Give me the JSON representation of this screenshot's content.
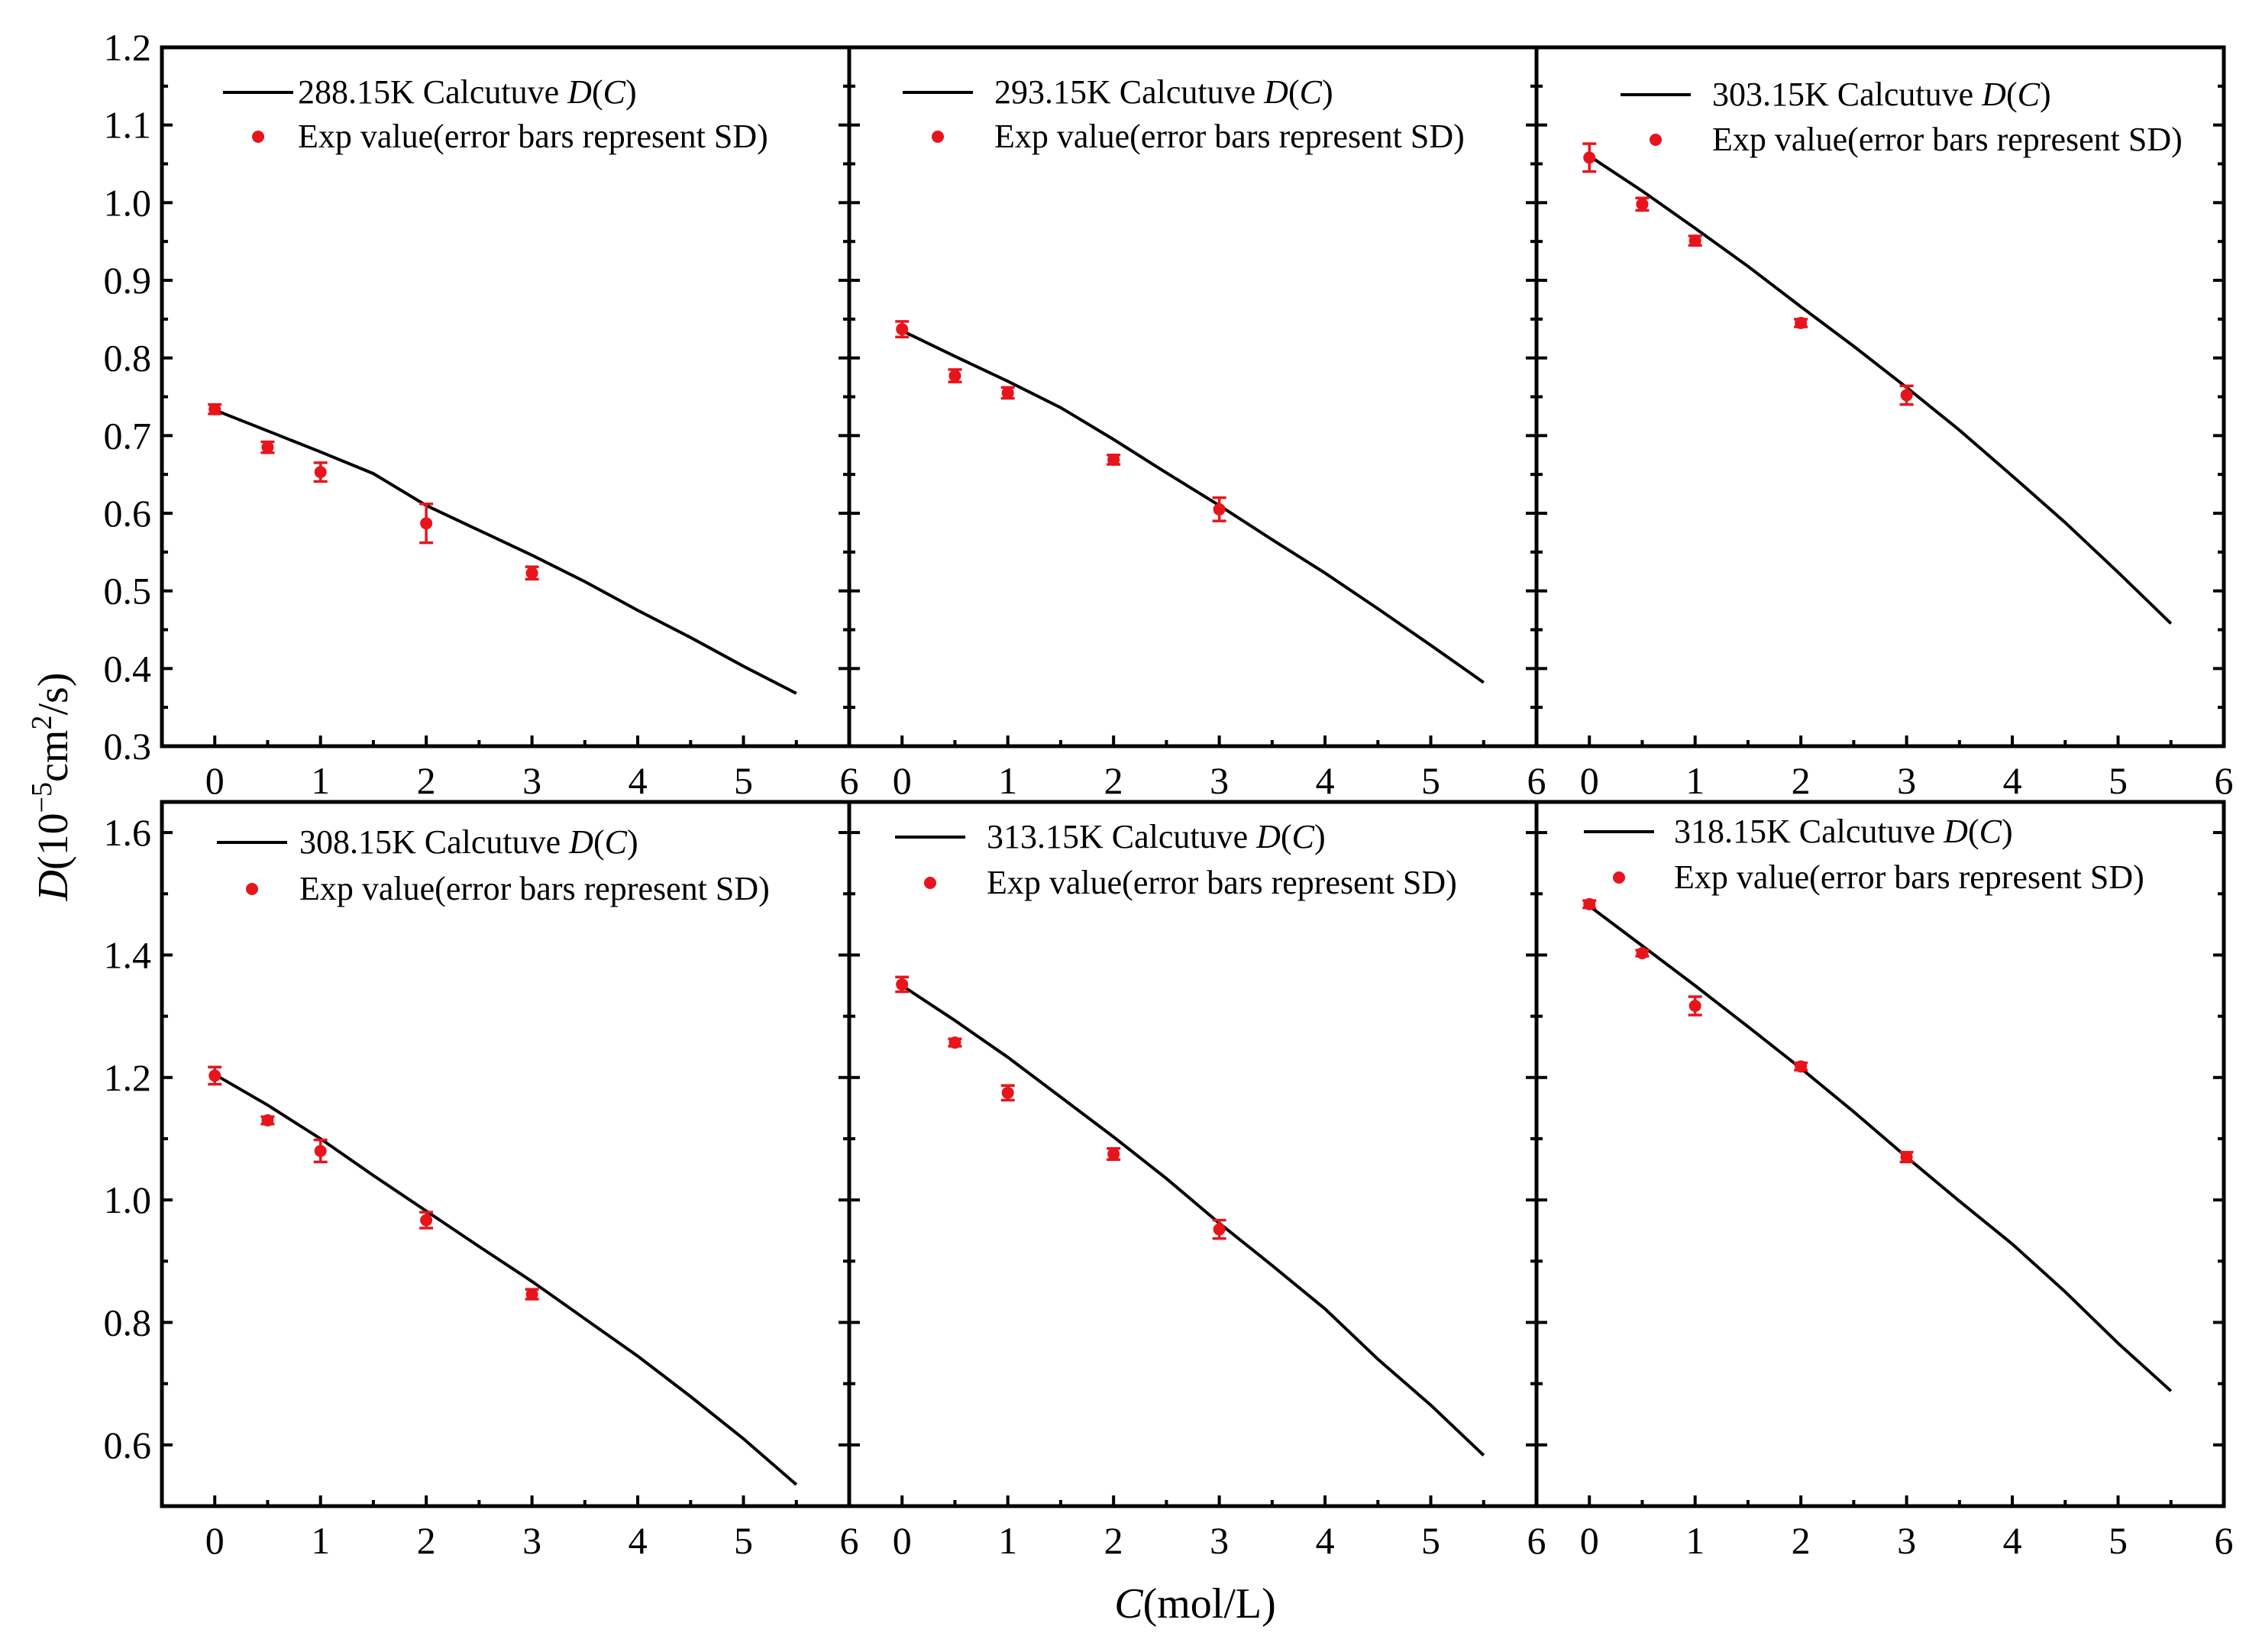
{
  "figure": {
    "y_axis_title": {
      "prefix": "D",
      "base": "(10",
      "exp1": "−5",
      "mid": "cm",
      "exp2": "2",
      "suffix": "/s)"
    },
    "x_axis_title": {
      "prefix": "C",
      "suffix": "(mol/L)"
    },
    "legend_curve_suffix": " Calcutuve ",
    "legend_curve_func": "D",
    "legend_curve_open": "(",
    "legend_curve_arg": "C",
    "legend_curve_close": ")",
    "legend_points_label": "Exp value(error bars represent SD)",
    "colors": {
      "curve": "#000000",
      "points": "#e8141c"
    }
  },
  "chart_data": [
    {
      "type": "line",
      "temperature": "288.15K",
      "xlim": [
        -0.5,
        6
      ],
      "ylim": [
        0.3,
        1.2
      ],
      "xticks": [
        "0",
        "1",
        "2",
        "3",
        "4",
        "5",
        "6"
      ],
      "yticks": [
        "0.3",
        "0.4",
        "0.5",
        "0.6",
        "0.7",
        "0.8",
        "0.9",
        "1.0",
        "1.1",
        "1.2"
      ],
      "curve": {
        "x": [
          0,
          0.5,
          1,
          1.5,
          2,
          2.5,
          3,
          3.5,
          4,
          4.5,
          5,
          5.5
        ],
        "y": [
          0.733,
          0.706,
          0.679,
          0.651,
          0.61,
          0.578,
          0.546,
          0.512,
          0.475,
          0.44,
          0.403,
          0.368
        ]
      },
      "points": {
        "x": [
          0,
          0.5,
          1,
          2,
          3
        ],
        "y": [
          0.734,
          0.685,
          0.653,
          0.587,
          0.523
        ],
        "err": [
          0.006,
          0.007,
          0.012,
          0.025,
          0.008
        ]
      }
    },
    {
      "type": "line",
      "temperature": "293.15K",
      "xlim": [
        -0.5,
        6
      ],
      "ylim": [
        0.3,
        1.2
      ],
      "xticks": [
        "0",
        "1",
        "2",
        "3",
        "4",
        "5",
        "6"
      ],
      "yticks": [
        "0.3",
        "0.4",
        "0.5",
        "0.6",
        "0.7",
        "0.8",
        "0.9",
        "1.0",
        "1.1",
        "1.2"
      ],
      "curve": {
        "x": [
          0,
          0.5,
          1,
          1.5,
          2,
          2.5,
          3,
          3.5,
          4,
          4.5,
          5,
          5.5
        ],
        "y": [
          0.835,
          0.802,
          0.77,
          0.736,
          0.695,
          0.652,
          0.61,
          0.566,
          0.523,
          0.477,
          0.43,
          0.382
        ]
      },
      "points": {
        "x": [
          0,
          0.5,
          1,
          2,
          3
        ],
        "y": [
          0.837,
          0.777,
          0.755,
          0.669,
          0.605
        ],
        "err": [
          0.01,
          0.008,
          0.007,
          0.006,
          0.015
        ]
      }
    },
    {
      "type": "line",
      "temperature": "303.15K",
      "xlim": [
        -0.5,
        6
      ],
      "ylim": [
        0.3,
        1.2
      ],
      "xticks": [
        "0",
        "1",
        "2",
        "3",
        "4",
        "5",
        "6"
      ],
      "yticks": [
        "0.3",
        "0.4",
        "0.5",
        "0.6",
        "0.7",
        "0.8",
        "0.9",
        "1.0",
        "1.1",
        "1.2"
      ],
      "curve": {
        "x": [
          0,
          0.5,
          1,
          1.5,
          2,
          2.5,
          3,
          3.5,
          4,
          4.5,
          5,
          5.5
        ],
        "y": [
          1.06,
          1.015,
          0.967,
          0.918,
          0.866,
          0.815,
          0.762,
          0.707,
          0.648,
          0.588,
          0.524,
          0.458
        ]
      },
      "points": {
        "x": [
          0,
          0.5,
          1,
          2,
          3
        ],
        "y": [
          1.058,
          0.998,
          0.951,
          0.845,
          0.752
        ],
        "err": [
          0.018,
          0.008,
          0.006,
          0.005,
          0.012
        ]
      }
    },
    {
      "type": "line",
      "temperature": "308.15K",
      "xlim": [
        -0.5,
        6
      ],
      "ylim": [
        0.5,
        1.65
      ],
      "xticks": [
        "0",
        "1",
        "2",
        "3",
        "4",
        "5",
        "6"
      ],
      "yticks": [
        "0.6",
        "0.8",
        "1.0",
        "1.2",
        "1.4",
        "1.6"
      ],
      "curve": {
        "x": [
          0,
          0.5,
          1,
          1.5,
          2,
          2.5,
          3,
          3.5,
          4,
          4.5,
          5,
          5.5
        ],
        "y": [
          1.205,
          1.155,
          1.1,
          1.04,
          0.982,
          0.924,
          0.867,
          0.806,
          0.745,
          0.679,
          0.61,
          0.535
        ]
      },
      "points": {
        "x": [
          0,
          0.5,
          1,
          2,
          3
        ],
        "y": [
          1.203,
          1.13,
          1.08,
          0.967,
          0.846
        ],
        "err": [
          0.014,
          0.006,
          0.018,
          0.013,
          0.008
        ]
      }
    },
    {
      "type": "line",
      "temperature": "313.15K",
      "xlim": [
        -0.5,
        6
      ],
      "ylim": [
        0.5,
        1.65
      ],
      "xticks": [
        "0",
        "1",
        "2",
        "3",
        "4",
        "5",
        "6"
      ],
      "yticks": [
        "0.6",
        "0.8",
        "1.0",
        "1.2",
        "1.4",
        "1.6"
      ],
      "curve": {
        "x": [
          0,
          0.5,
          1,
          1.5,
          2,
          2.5,
          3,
          3.5,
          4,
          4.5,
          5,
          5.5
        ],
        "y": [
          1.35,
          1.293,
          1.233,
          1.168,
          1.103,
          1.035,
          0.962,
          0.893,
          0.822,
          0.74,
          0.665,
          0.583
        ]
      },
      "points": {
        "x": [
          0,
          0.5,
          1,
          2,
          3
        ],
        "y": [
          1.352,
          1.257,
          1.175,
          1.075,
          0.952
        ],
        "err": [
          0.012,
          0.006,
          0.012,
          0.009,
          0.015
        ]
      }
    },
    {
      "type": "line",
      "temperature": "318.15K",
      "xlim": [
        -0.5,
        6
      ],
      "ylim": [
        0.5,
        1.65
      ],
      "xticks": [
        "0",
        "1",
        "2",
        "3",
        "4",
        "5",
        "6"
      ],
      "yticks": [
        "0.6",
        "0.8",
        "1.0",
        "1.2",
        "1.4",
        "1.6"
      ],
      "curve": {
        "x": [
          0,
          0.5,
          1,
          1.5,
          2,
          2.5,
          3,
          3.5,
          4,
          4.5,
          5,
          5.5
        ],
        "y": [
          1.48,
          1.415,
          1.35,
          1.283,
          1.215,
          1.144,
          1.07,
          0.998,
          0.928,
          0.85,
          0.766,
          0.688
        ]
      },
      "points": {
        "x": [
          0,
          0.5,
          1,
          2,
          3
        ],
        "y": [
          1.483,
          1.403,
          1.317,
          1.218,
          1.07
        ],
        "err": [
          0.006,
          0.005,
          0.015,
          0.006,
          0.008
        ]
      }
    }
  ]
}
